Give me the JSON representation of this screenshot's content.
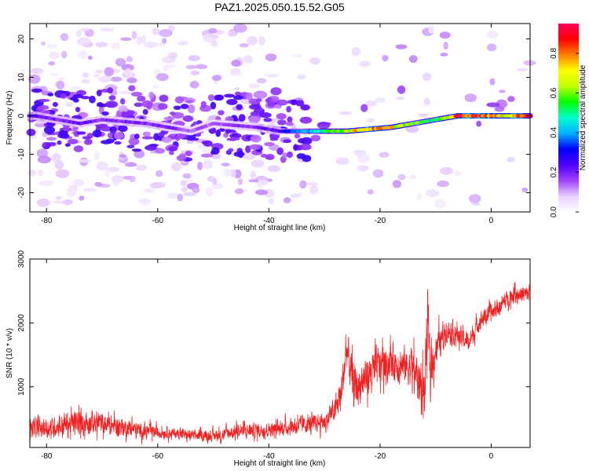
{
  "title": "PAZ1.2025.050.15.52.G05",
  "chart_data": [
    {
      "type": "heatmap",
      "xlabel": "Height of straight line (km)",
      "ylabel": "Frequency (Hz)",
      "xlim": [
        -83,
        7
      ],
      "ylim": [
        -25,
        24
      ],
      "xticks": [
        -80,
        -60,
        -40,
        -20,
        0
      ],
      "yticks": [
        -20,
        -10,
        0,
        10,
        20
      ],
      "colorbar": {
        "label": "Normalized spectral amplitude",
        "range": [
          0,
          0.95
        ],
        "ticks": [
          0.0,
          0.2,
          0.4,
          0.6,
          0.8
        ],
        "colormap": [
          "#ffffff",
          "#e9d0ff",
          "#a040ff",
          "#5000ff",
          "#0000ff",
          "#00b0ff",
          "#00ffd0",
          "#00ff00",
          "#c0ff00",
          "#ffff00",
          "#ff8000",
          "#ff0000",
          "#ff0060"
        ]
      },
      "ridge": {
        "x": [
          -82,
          -78,
          -74,
          -70,
          -66,
          -62,
          -58,
          -54,
          -50,
          -46,
          -42,
          -38,
          -34,
          -30,
          -26,
          -22,
          -18,
          -14,
          -10,
          -6,
          -2,
          2,
          6
        ],
        "frequency": [
          0,
          -1,
          -2,
          -1,
          -1.5,
          -2,
          -3,
          -4,
          -2,
          -2.5,
          -3,
          -4,
          -4,
          -4,
          -4,
          -3.5,
          -3,
          -2,
          -1,
          0,
          0,
          0,
          0
        ],
        "amplitude": [
          0.25,
          0.2,
          0.22,
          0.18,
          0.2,
          0.2,
          0.2,
          0.15,
          0.15,
          0.18,
          0.2,
          0.25,
          0.4,
          0.55,
          0.7,
          0.8,
          0.75,
          0.6,
          0.5,
          0.9,
          0.95,
          0.7,
          0.9
        ]
      }
    },
    {
      "type": "line",
      "xlabel": "Height of straight line (km)",
      "ylabel": "SNR (10 * v/v)",
      "xlim": [
        -83,
        7
      ],
      "ylim": [
        50,
        3000
      ],
      "xticks": [
        -80,
        -60,
        -40,
        -20,
        0
      ],
      "yticks": [
        1000,
        2000,
        3000
      ],
      "color": "#ee2222",
      "envelope": {
        "x": [
          -83,
          -80,
          -76,
          -72,
          -70,
          -66,
          -62,
          -58,
          -54,
          -50,
          -46,
          -42,
          -38,
          -34,
          -30,
          -28,
          -27,
          -26,
          -25,
          -24,
          -22,
          -20,
          -18,
          -16,
          -14,
          -13,
          -12,
          -11.5,
          -11,
          -10,
          -8,
          -6,
          -4,
          -2,
          0,
          2,
          4,
          7
        ],
        "mean": [
          350,
          350,
          420,
          450,
          420,
          360,
          300,
          280,
          240,
          230,
          300,
          320,
          340,
          400,
          450,
          650,
          900,
          1600,
          1100,
          1000,
          1200,
          1350,
          1400,
          1350,
          1300,
          1100,
          900,
          2000,
          1200,
          1600,
          1900,
          1800,
          1700,
          2050,
          2150,
          2300,
          2450,
          2450
        ],
        "spread": [
          250,
          250,
          350,
          350,
          300,
          250,
          200,
          150,
          150,
          150,
          200,
          200,
          200,
          250,
          250,
          350,
          500,
          600,
          600,
          550,
          600,
          550,
          500,
          500,
          600,
          700,
          800,
          900,
          700,
          500,
          350,
          300,
          300,
          250,
          250,
          250,
          250,
          250
        ]
      }
    }
  ]
}
